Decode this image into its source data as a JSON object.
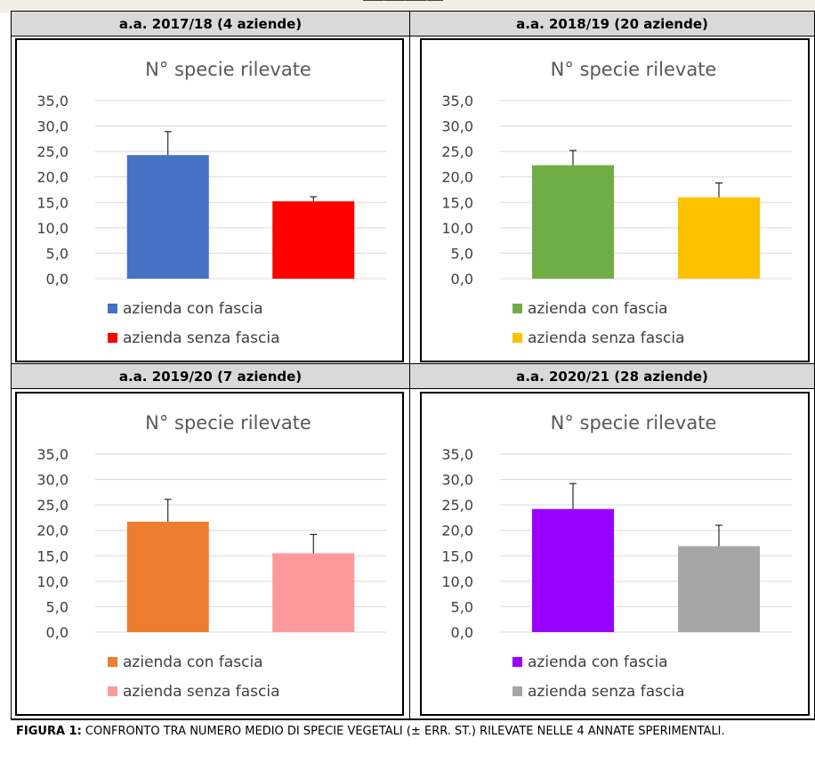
{
  "headers": [
    "a.a. 2017/18 (4 aziende)",
    "a.a. 2018/19 (20 aziende)",
    "a.a. 2019/20 (7 aziende)",
    "a.a. 2020/21 (28 aziende)"
  ],
  "caption": {
    "label": "FIGURA 1:",
    "text": " CONFRONTO TRA NUMERO MEDIO DI SPECIE VEGETALI (± ERR. ST.) RILEVATE NELLE 4 ANNATE SPERIMENTALI."
  },
  "chart_data": [
    {
      "type": "bar",
      "title": "N° specie rilevate",
      "categories": [
        "azienda con fascia",
        "azienda senza fascia"
      ],
      "values": [
        24.3,
        15.2
      ],
      "errors": [
        4.6,
        0.9
      ],
      "colors": [
        "#4472c4",
        "#ff0000"
      ],
      "ylim": [
        0,
        35
      ],
      "yticks": [
        "0,0",
        "5,0",
        "10,0",
        "15,0",
        "20,0",
        "25,0",
        "30,0",
        "35,0"
      ],
      "grid": true,
      "legend": "bottom"
    },
    {
      "type": "bar",
      "title": "N° specie rilevate",
      "categories": [
        "azienda con fascia",
        "azienda senza fascia"
      ],
      "values": [
        22.3,
        16.0
      ],
      "errors": [
        2.9,
        2.8
      ],
      "colors": [
        "#70ad47",
        "#ffc000"
      ],
      "ylim": [
        0,
        35
      ],
      "yticks": [
        "0,0",
        "5,0",
        "10,0",
        "15,0",
        "20,0",
        "25,0",
        "30,0",
        "35,0"
      ],
      "grid": true,
      "legend": "bottom"
    },
    {
      "type": "bar",
      "title": "N° specie rilevate",
      "categories": [
        "azienda con fascia",
        "azienda senza fascia"
      ],
      "values": [
        21.7,
        15.5
      ],
      "errors": [
        4.4,
        3.7
      ],
      "colors": [
        "#ed7d31",
        "#ff9999"
      ],
      "ylim": [
        0,
        35
      ],
      "yticks": [
        "0,0",
        "5,0",
        "10,0",
        "15,0",
        "20,0",
        "25,0",
        "30,0",
        "35,0"
      ],
      "grid": true,
      "legend": "bottom"
    },
    {
      "type": "bar",
      "title": "N° specie rilevate",
      "categories": [
        "azienda con fascia",
        "azienda senza fascia"
      ],
      "values": [
        24.2,
        16.9
      ],
      "errors": [
        5.0,
        4.1
      ],
      "colors": [
        "#9900ff",
        "#a6a6a6"
      ],
      "ylim": [
        0,
        35
      ],
      "yticks": [
        "0,0",
        "5,0",
        "10,0",
        "15,0",
        "20,0",
        "25,0",
        "30,0",
        "35,0"
      ],
      "grid": true,
      "legend": "bottom"
    }
  ]
}
